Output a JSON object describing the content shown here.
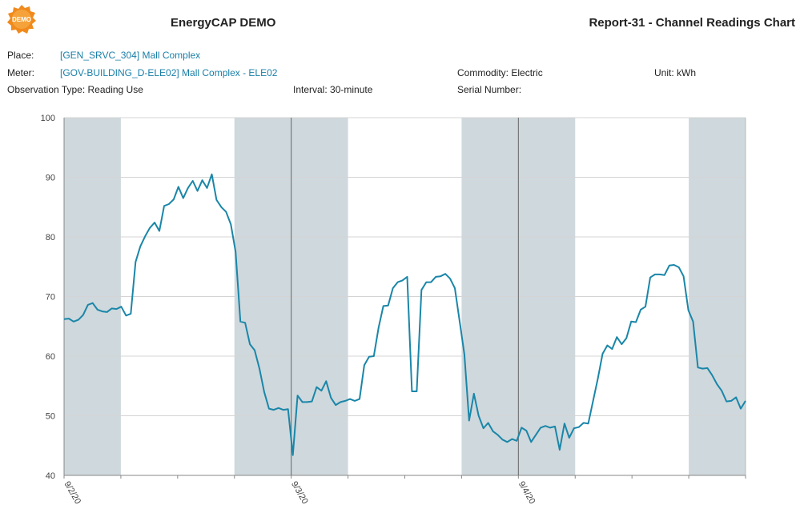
{
  "header": {
    "logo_text": "DEMO",
    "app_title": "EnergyCAP DEMO",
    "report_title": "Report-31 - Channel Readings Chart"
  },
  "details": {
    "place_label": "Place:",
    "place_value": "[GEN_SRVC_304] Mall Complex",
    "meter_label": "Meter:",
    "meter_value": "[GOV-BUILDING_D-ELE02] Mall Complex - ELE02",
    "commodity": "Commodity: Electric",
    "unit": "Unit: kWh",
    "observation_type": "Observation Type: Reading Use",
    "interval": "Interval: 30-minute",
    "serial_number": "Serial Number:"
  },
  "colors": {
    "line": "#1a86a8",
    "shade": "#ced8dd",
    "link": "#1a7fa8",
    "logo": "#f08a1c"
  },
  "chart_data": {
    "type": "line",
    "title": "",
    "xlabel": "",
    "ylabel": "",
    "ylim": [
      40,
      100
    ],
    "yticks": [
      40,
      50,
      60,
      70,
      80,
      90,
      100
    ],
    "xlim_hours": [
      0,
      72
    ],
    "xtick_labels": [
      {
        "label": "9/2/20",
        "hour": 0
      },
      {
        "label": "9/3/20",
        "hour": 24
      },
      {
        "label": "9/4/20",
        "hour": 48
      }
    ],
    "shaded_hour_ranges": [
      [
        0,
        6
      ],
      [
        18,
        30
      ],
      [
        42,
        54
      ],
      [
        66,
        72
      ]
    ],
    "day_divider_hours": [
      24,
      48
    ],
    "series": [
      {
        "values": [
          66.2,
          66.3,
          65.8,
          66.1,
          66.9,
          68.6,
          68.9,
          67.8,
          67.5,
          67.4,
          68.0,
          67.9,
          68.3,
          66.8,
          67.1,
          75.8,
          78.4,
          80.1,
          81.5,
          82.4,
          81.0,
          85.2,
          85.5,
          86.3,
          88.4,
          86.5,
          88.2,
          89.4,
          87.7,
          89.5,
          88.2,
          90.5,
          86.2,
          85.0,
          84.2,
          82.1,
          77.5,
          65.8,
          65.6,
          62.0,
          61.0,
          57.9,
          54.0,
          51.2,
          51.0,
          51.3,
          51.0,
          51.1,
          43.4,
          53.4,
          52.3,
          52.3,
          52.4,
          54.8,
          54.2,
          55.8,
          53.0,
          51.8,
          52.3,
          52.5,
          52.8,
          52.5,
          52.8,
          58.5,
          59.9,
          60.0,
          64.8,
          68.4,
          68.5,
          71.4,
          72.4,
          72.7,
          73.3,
          54.1,
          54.1,
          71.1,
          72.4,
          72.4,
          73.3,
          73.4,
          73.8,
          73.0,
          71.4,
          65.9,
          60.3,
          49.2,
          53.7,
          50.0,
          47.9,
          48.8,
          47.4,
          46.8,
          46.0,
          45.6,
          46.1,
          45.8,
          48.0,
          47.5,
          45.6,
          46.8,
          48.0,
          48.3,
          48.0,
          48.2,
          44.3,
          48.7,
          46.3,
          47.9,
          48.1,
          48.8,
          48.7,
          52.5,
          56.2,
          60.4,
          61.8,
          61.2,
          63.2,
          62.0,
          63.0,
          65.8,
          65.7,
          67.8,
          68.3,
          73.2,
          73.7,
          73.7,
          73.6,
          75.2,
          75.3,
          74.9,
          73.4,
          67.7,
          65.8,
          58.1,
          57.9,
          58.0,
          56.8,
          55.3,
          54.2,
          52.4,
          52.5,
          53.1,
          51.2,
          52.5
        ]
      }
    ]
  }
}
